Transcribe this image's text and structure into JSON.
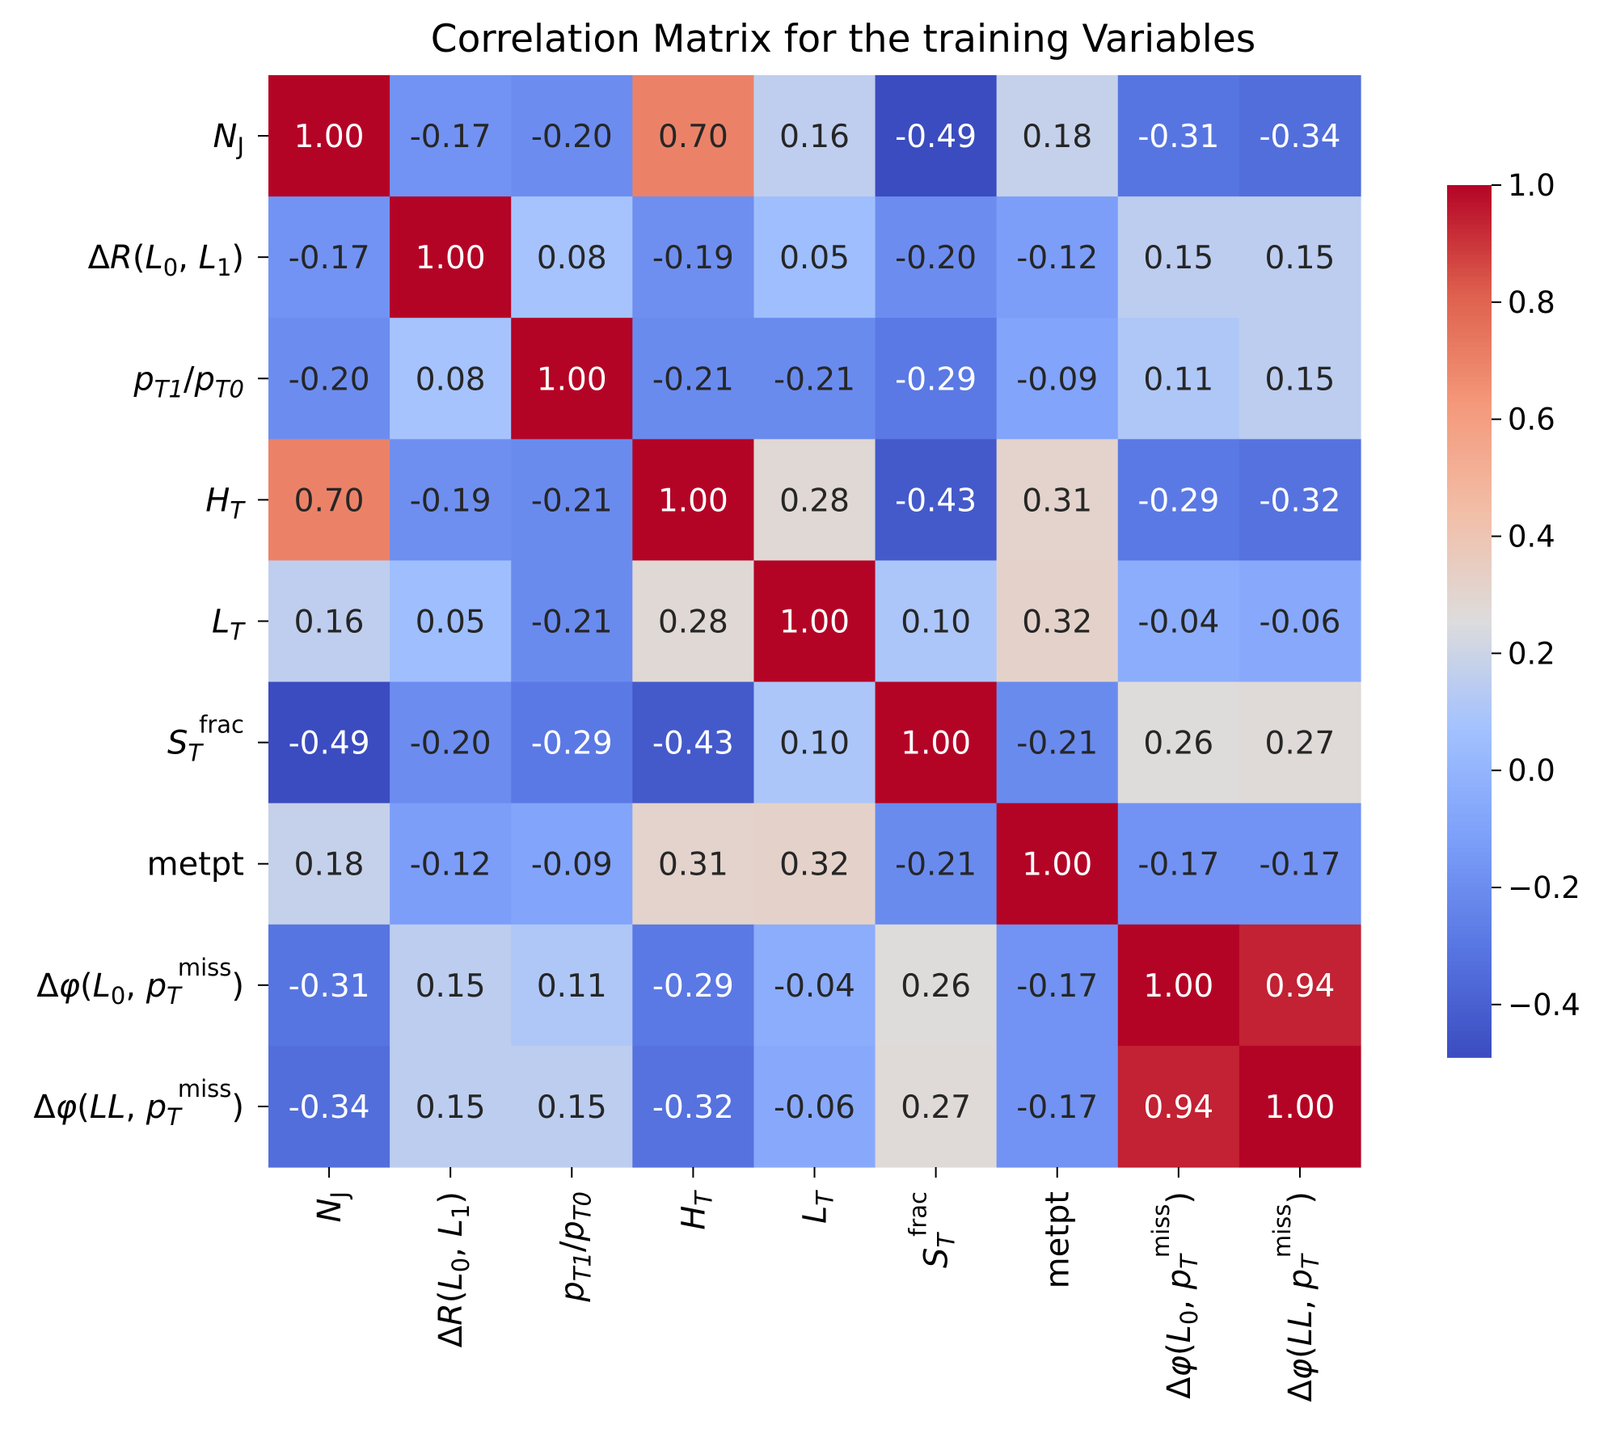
{
  "chart_data": {
    "type": "heatmap",
    "title": "Correlation Matrix for the training Variables",
    "variables": [
      "N_J",
      "ΔR(L_0, L_1)",
      "p_T1/p_T0",
      "H_T",
      "L_T",
      "S_T^frac",
      "metpt",
      "Δφ(L_0, p_T^miss)",
      "Δφ(LL, p_T^miss)"
    ],
    "matrix": [
      [
        1.0,
        -0.17,
        -0.2,
        0.7,
        0.16,
        -0.49,
        0.18,
        -0.31,
        -0.34
      ],
      [
        -0.17,
        1.0,
        0.08,
        -0.19,
        0.05,
        -0.2,
        -0.12,
        0.15,
        0.15
      ],
      [
        -0.2,
        0.08,
        1.0,
        -0.21,
        -0.21,
        -0.29,
        -0.09,
        0.11,
        0.15
      ],
      [
        0.7,
        -0.19,
        -0.21,
        1.0,
        0.28,
        -0.43,
        0.31,
        -0.29,
        -0.32
      ],
      [
        0.16,
        0.05,
        -0.21,
        0.28,
        1.0,
        0.1,
        0.32,
        -0.04,
        -0.06
      ],
      [
        -0.49,
        -0.2,
        -0.29,
        -0.43,
        0.1,
        1.0,
        -0.21,
        0.26,
        0.27
      ],
      [
        0.18,
        -0.12,
        -0.09,
        0.31,
        0.32,
        -0.21,
        1.0,
        -0.17,
        -0.17
      ],
      [
        -0.31,
        0.15,
        0.11,
        -0.29,
        -0.04,
        0.26,
        -0.17,
        1.0,
        0.94
      ],
      [
        -0.34,
        0.15,
        0.15,
        -0.32,
        -0.06,
        0.27,
        -0.17,
        0.94,
        1.0
      ]
    ],
    "value_format": "2 decimals",
    "colormap": "coolwarm",
    "vmin": -0.49,
    "vmax": 1.0,
    "colorbar": {
      "ticks": [
        1.0,
        0.8,
        0.6,
        0.4,
        0.2,
        0.0,
        -0.2,
        -0.4
      ],
      "tick_labels": [
        "1.0",
        "0.8",
        "0.6",
        "0.4",
        "0.2",
        "0.0",
        "−0.2",
        "−0.4"
      ],
      "placement": "right"
    },
    "colors": {
      "low": "#3b4cc0",
      "mid": "#dddcdc",
      "high": "#b40426"
    }
  }
}
